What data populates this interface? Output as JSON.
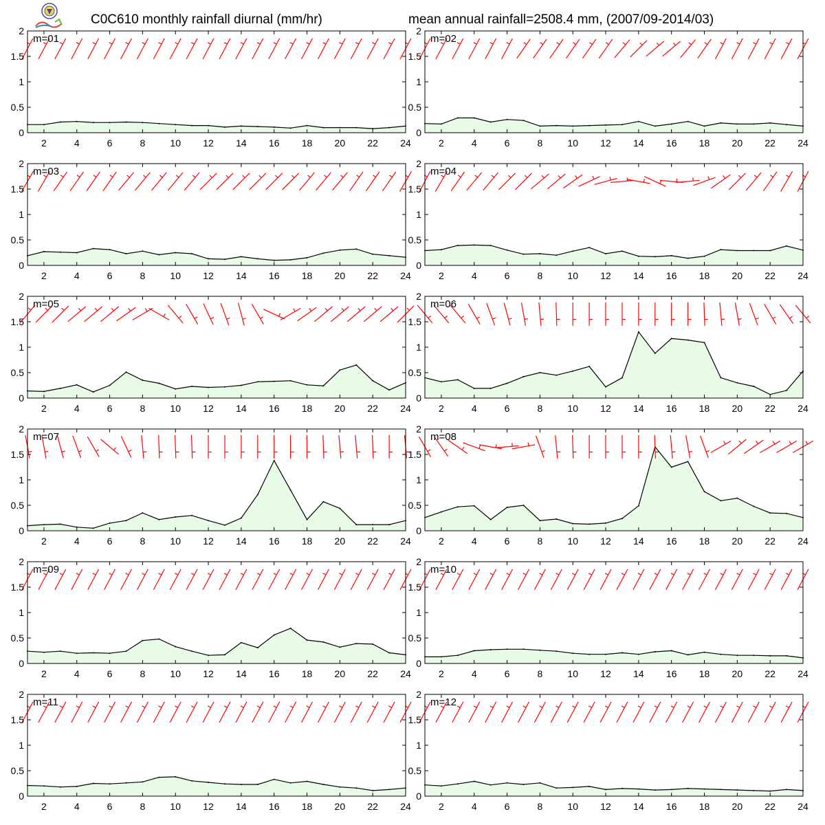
{
  "title_left": "C0C610 monthly rainfall diurnal (mm/hr)",
  "title_right": "mean annual rainfall=2508.4 mm, (2007/09-2014/03)",
  "colors": {
    "line": "#000000",
    "fill": "#e8fbe6",
    "wind": "#ff0000",
    "axis": "#000000"
  },
  "chart_data": {
    "type": "area",
    "layout": "6x2 small multiples",
    "x_ticks": [
      2,
      4,
      6,
      8,
      10,
      12,
      14,
      16,
      18,
      20,
      22,
      24
    ],
    "xlim": [
      1,
      24
    ],
    "y_ticks": [
      "0",
      "0.5",
      "1",
      "1.5",
      "2"
    ],
    "ylim": [
      0,
      2
    ],
    "x": [
      1,
      2,
      3,
      4,
      5,
      6,
      7,
      8,
      9,
      10,
      11,
      12,
      13,
      14,
      15,
      16,
      17,
      18,
      19,
      20,
      21,
      22,
      23,
      24
    ],
    "panels": [
      {
        "label": "m=01",
        "values": [
          0.16,
          0.16,
          0.21,
          0.22,
          0.2,
          0.2,
          0.21,
          0.2,
          0.18,
          0.16,
          0.14,
          0.14,
          0.11,
          0.13,
          0.12,
          0.11,
          0.09,
          0.14,
          0.1,
          0.1,
          0.1,
          0.08,
          0.1,
          0.13
        ],
        "wind_deg": [
          62,
          62,
          62,
          62,
          62,
          62,
          62,
          62,
          62,
          62,
          62,
          62,
          62,
          62,
          62,
          62,
          62,
          62,
          62,
          62,
          62,
          62,
          62,
          62
        ]
      },
      {
        "label": "m=02",
        "values": [
          0.18,
          0.17,
          0.29,
          0.29,
          0.21,
          0.26,
          0.24,
          0.13,
          0.14,
          0.13,
          0.14,
          0.15,
          0.16,
          0.22,
          0.13,
          0.17,
          0.22,
          0.13,
          0.19,
          0.17,
          0.17,
          0.19,
          0.16,
          0.13
        ],
        "wind_deg": [
          62,
          62,
          62,
          62,
          62,
          62,
          55,
          55,
          55,
          55,
          55,
          55,
          50,
          45,
          40,
          40,
          50,
          55,
          62,
          62,
          62,
          62,
          62,
          62
        ]
      },
      {
        "label": "m=03",
        "values": [
          0.19,
          0.27,
          0.26,
          0.25,
          0.33,
          0.31,
          0.23,
          0.28,
          0.21,
          0.25,
          0.23,
          0.13,
          0.12,
          0.17,
          0.13,
          0.1,
          0.11,
          0.15,
          0.24,
          0.3,
          0.32,
          0.22,
          0.19,
          0.16
        ],
        "wind_deg": [
          60,
          60,
          55,
          55,
          55,
          55,
          50,
          50,
          50,
          50,
          50,
          45,
          45,
          45,
          45,
          45,
          45,
          50,
          50,
          50,
          55,
          55,
          55,
          60
        ]
      },
      {
        "label": "m=04",
        "values": [
          0.29,
          0.31,
          0.39,
          0.4,
          0.39,
          0.3,
          0.22,
          0.23,
          0.2,
          0.28,
          0.35,
          0.23,
          0.28,
          0.18,
          0.17,
          0.19,
          0.14,
          0.18,
          0.31,
          0.29,
          0.29,
          0.29,
          0.38,
          0.3
        ],
        "wind_deg": [
          62,
          60,
          55,
          50,
          50,
          45,
          45,
          40,
          40,
          35,
          25,
          15,
          5,
          -10,
          -25,
          -5,
          5,
          20,
          35,
          45,
          50,
          55,
          60,
          62
        ]
      },
      {
        "label": "m=05",
        "values": [
          0.14,
          0.13,
          0.19,
          0.26,
          0.12,
          0.25,
          0.51,
          0.35,
          0.29,
          0.18,
          0.23,
          0.21,
          0.22,
          0.25,
          0.32,
          0.33,
          0.34,
          0.26,
          0.24,
          0.55,
          0.65,
          0.34,
          0.16,
          0.3
        ],
        "wind_deg": [
          50,
          45,
          45,
          40,
          40,
          40,
          35,
          30,
          -30,
          -50,
          -60,
          -65,
          -70,
          -75,
          -60,
          -25,
          30,
          35,
          40,
          40,
          40,
          40,
          40,
          45
        ]
      },
      {
        "label": "m=06",
        "values": [
          0.4,
          0.32,
          0.36,
          0.19,
          0.19,
          0.29,
          0.42,
          0.5,
          0.45,
          0.53,
          0.62,
          0.22,
          0.4,
          1.3,
          0.88,
          1.17,
          1.14,
          1.09,
          0.4,
          0.3,
          0.23,
          0.07,
          0.15,
          0.53
        ],
        "wind_deg": [
          -50,
          -50,
          -50,
          -60,
          -70,
          -75,
          -80,
          -85,
          -88,
          -90,
          -90,
          -90,
          -90,
          -90,
          -90,
          -90,
          -90,
          -88,
          -85,
          -80,
          -70,
          -60,
          -55,
          -50
        ]
      },
      {
        "label": "m=07",
        "values": [
          0.1,
          0.12,
          0.13,
          0.07,
          0.05,
          0.15,
          0.2,
          0.35,
          0.22,
          0.27,
          0.3,
          0.2,
          0.11,
          0.25,
          0.71,
          1.38,
          0.8,
          0.22,
          0.57,
          0.44,
          0.12,
          0.12,
          0.12,
          0.2
        ],
        "wind_deg": [
          -80,
          -80,
          -75,
          -70,
          -60,
          -40,
          -65,
          -85,
          -88,
          -88,
          -88,
          -90,
          -90,
          -90,
          -90,
          -90,
          -90,
          -90,
          -88,
          -85,
          -85,
          -88,
          -90,
          -85
        ]
      },
      {
        "label": "m=08",
        "values": [
          0.26,
          0.37,
          0.47,
          0.49,
          0.22,
          0.46,
          0.5,
          0.2,
          0.23,
          0.14,
          0.13,
          0.15,
          0.24,
          0.49,
          1.65,
          1.25,
          1.36,
          0.77,
          0.59,
          0.64,
          0.48,
          0.35,
          0.34,
          0.26
        ],
        "wind_deg": [
          -60,
          -55,
          -35,
          -20,
          -10,
          5,
          10,
          -70,
          -85,
          -88,
          -90,
          -90,
          -90,
          -90,
          -88,
          -85,
          -80,
          -70,
          30,
          40,
          35,
          30,
          30,
          30
        ]
      },
      {
        "label": "m=09",
        "values": [
          0.24,
          0.22,
          0.24,
          0.2,
          0.21,
          0.2,
          0.24,
          0.45,
          0.48,
          0.33,
          0.24,
          0.16,
          0.17,
          0.41,
          0.31,
          0.56,
          0.69,
          0.46,
          0.42,
          0.32,
          0.39,
          0.38,
          0.21,
          0.17
        ],
        "wind_deg": [
          62,
          62,
          62,
          62,
          62,
          62,
          62,
          62,
          62,
          62,
          62,
          62,
          62,
          62,
          62,
          62,
          62,
          62,
          62,
          62,
          62,
          62,
          62,
          62
        ]
      },
      {
        "label": "m=10",
        "values": [
          0.13,
          0.13,
          0.16,
          0.25,
          0.27,
          0.28,
          0.28,
          0.26,
          0.24,
          0.2,
          0.18,
          0.18,
          0.21,
          0.18,
          0.23,
          0.25,
          0.17,
          0.22,
          0.18,
          0.16,
          0.16,
          0.15,
          0.15,
          0.11
        ],
        "wind_deg": [
          62,
          62,
          62,
          62,
          62,
          62,
          62,
          62,
          62,
          62,
          62,
          62,
          62,
          62,
          62,
          62,
          62,
          62,
          62,
          62,
          62,
          62,
          62,
          62
        ]
      },
      {
        "label": "m=11",
        "values": [
          0.21,
          0.2,
          0.18,
          0.19,
          0.25,
          0.24,
          0.26,
          0.28,
          0.37,
          0.38,
          0.3,
          0.27,
          0.24,
          0.23,
          0.23,
          0.33,
          0.26,
          0.29,
          0.23,
          0.18,
          0.16,
          0.11,
          0.13,
          0.16
        ],
        "wind_deg": [
          62,
          62,
          62,
          62,
          62,
          62,
          62,
          62,
          62,
          62,
          62,
          62,
          62,
          62,
          62,
          62,
          62,
          62,
          62,
          62,
          62,
          62,
          62,
          62
        ]
      },
      {
        "label": "m=12",
        "values": [
          0.22,
          0.2,
          0.24,
          0.29,
          0.22,
          0.26,
          0.23,
          0.26,
          0.16,
          0.17,
          0.19,
          0.13,
          0.15,
          0.14,
          0.12,
          0.13,
          0.15,
          0.14,
          0.13,
          0.12,
          0.11,
          0.1,
          0.13,
          0.11
        ],
        "wind_deg": [
          62,
          62,
          62,
          62,
          62,
          62,
          62,
          62,
          62,
          62,
          62,
          62,
          62,
          62,
          62,
          62,
          62,
          62,
          62,
          62,
          62,
          62,
          62,
          62
        ]
      }
    ]
  }
}
